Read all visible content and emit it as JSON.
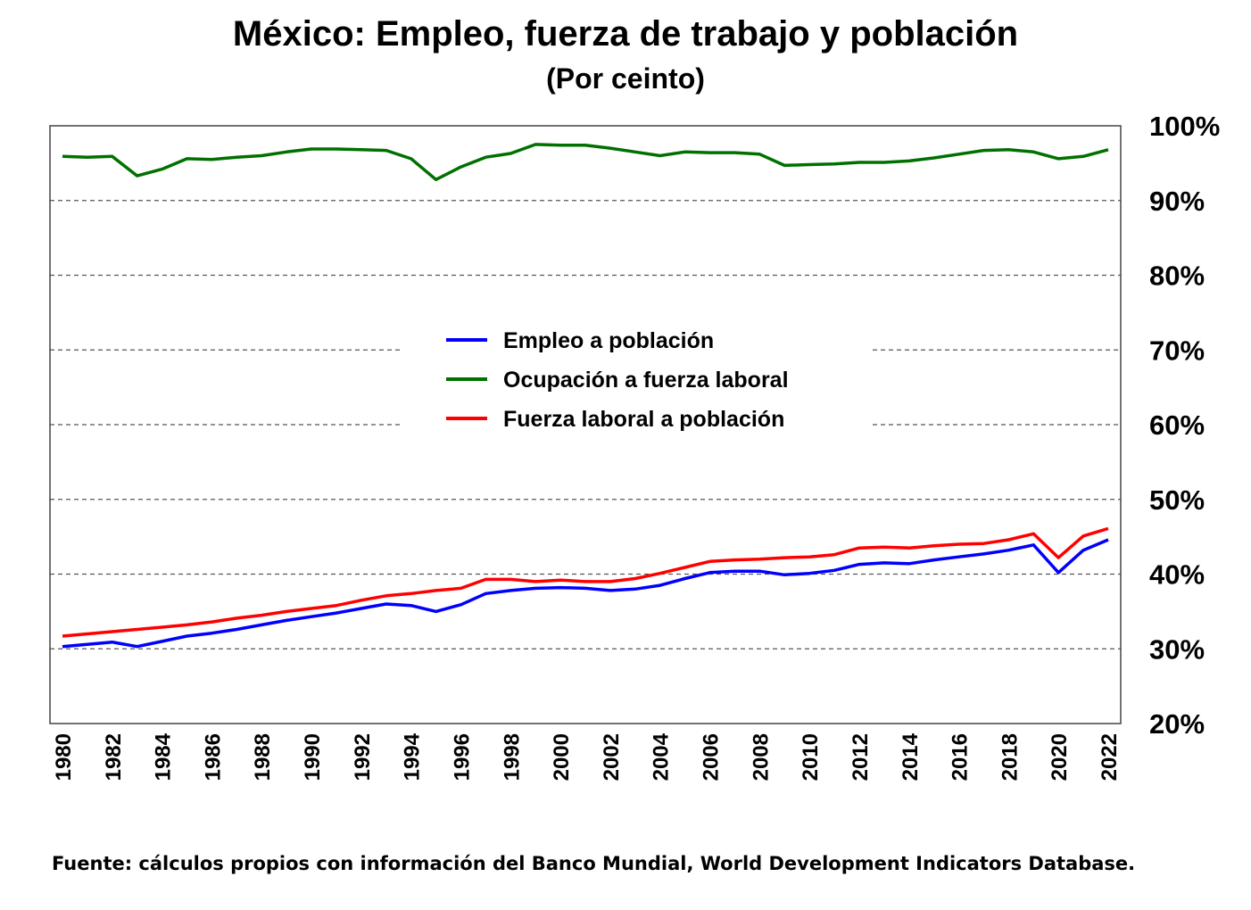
{
  "chart_data": {
    "type": "line",
    "title": "México: Empleo, fuerza de trabajo y población",
    "subtitle": "(Por ceinto)",
    "x": [
      1980,
      1981,
      1982,
      1983,
      1984,
      1985,
      1986,
      1987,
      1988,
      1989,
      1990,
      1991,
      1992,
      1993,
      1994,
      1995,
      1996,
      1997,
      1998,
      1999,
      2000,
      2001,
      2002,
      2003,
      2004,
      2005,
      2006,
      2007,
      2008,
      2009,
      2010,
      2011,
      2012,
      2013,
      2014,
      2015,
      2016,
      2017,
      2018,
      2019,
      2020,
      2021,
      2022
    ],
    "x_tick_labels": [
      "1980",
      "1982",
      "1984",
      "1986",
      "1988",
      "1990",
      "1992",
      "1994",
      "1996",
      "1998",
      "2000",
      "2002",
      "2004",
      "2006",
      "2008",
      "2010",
      "2012",
      "2014",
      "2016",
      "2018",
      "2020",
      "2022"
    ],
    "ylim": [
      20,
      100
    ],
    "y_tick_labels": [
      "100%",
      "90%",
      "80%",
      "70%",
      "60%",
      "50%",
      "40%",
      "30%",
      "20%"
    ],
    "y_axis_side": "right",
    "grid": "horizontal dashed",
    "legend_position": "center",
    "series": [
      {
        "name": "Empleo a población",
        "color": "#0000ff",
        "values": [
          30.3,
          30.6,
          30.9,
          30.3,
          31.0,
          31.7,
          32.1,
          32.6,
          33.2,
          33.8,
          34.3,
          34.8,
          35.4,
          36.0,
          35.8,
          35.0,
          35.9,
          37.4,
          37.8,
          38.1,
          38.2,
          38.1,
          37.8,
          38.0,
          38.5,
          39.4,
          40.2,
          40.4,
          40.4,
          39.9,
          40.1,
          40.5,
          41.3,
          41.5,
          41.4,
          41.9,
          42.3,
          42.7,
          43.2,
          43.9,
          40.2,
          43.2,
          44.6
        ]
      },
      {
        "name": "Ocupación a fuerza laboral",
        "color": "#007000",
        "values": [
          95.9,
          95.8,
          95.9,
          93.3,
          94.2,
          95.6,
          95.5,
          95.8,
          96.0,
          96.5,
          96.9,
          96.9,
          96.8,
          96.7,
          95.6,
          92.8,
          94.5,
          95.8,
          96.3,
          97.5,
          97.4,
          97.4,
          97.0,
          96.5,
          96.0,
          96.5,
          96.4,
          96.4,
          96.2,
          94.7,
          94.8,
          94.9,
          95.1,
          95.1,
          95.3,
          95.7,
          96.2,
          96.7,
          96.8,
          96.5,
          95.6,
          95.9,
          96.8
        ]
      },
      {
        "name": "Fuerza laboral a población",
        "color": "#ff0000",
        "values": [
          31.7,
          32.0,
          32.3,
          32.6,
          32.9,
          33.2,
          33.6,
          34.1,
          34.5,
          35.0,
          35.4,
          35.8,
          36.5,
          37.1,
          37.4,
          37.8,
          38.1,
          39.3,
          39.3,
          39.0,
          39.2,
          39.0,
          39.0,
          39.4,
          40.1,
          40.9,
          41.7,
          41.9,
          42.0,
          42.2,
          42.3,
          42.6,
          43.5,
          43.6,
          43.5,
          43.8,
          44.0,
          44.1,
          44.6,
          45.4,
          42.2,
          45.1,
          46.1
        ]
      }
    ]
  },
  "source": "Fuente: cálculos propios con información del Banco Mundial, World Development Indicators Database."
}
